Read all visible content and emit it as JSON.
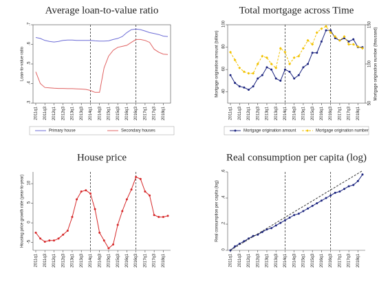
{
  "chart_data": [
    {
      "type": "line",
      "title": "Average loan-to-value ratio",
      "ylabel": "Loan-to-value ratio",
      "box": true,
      "categories": [
        "2011q1",
        null,
        "2011q3",
        null,
        "2012q1",
        null,
        "2012q3",
        null,
        "2013q1",
        null,
        "2013q3",
        null,
        "2014q1",
        null,
        "2014q3",
        null,
        "2015q1",
        null,
        "2015q3",
        null,
        "2016q1",
        null,
        "2016q3",
        null,
        "2017q1",
        null,
        "2017q3",
        null,
        "2018q1",
        null
      ],
      "vlines": [
        "2014q1",
        "2016q3"
      ],
      "ylim": [
        0.3,
        0.7
      ],
      "yticks": [
        {
          "value": 0.3,
          "label": ".3"
        },
        {
          "value": 0.4,
          "label": ".4"
        },
        {
          "value": 0.5,
          "label": ".5"
        },
        {
          "value": 0.6,
          "label": ".6"
        },
        {
          "value": 0.7,
          "label": ".7"
        }
      ],
      "series": [
        {
          "name": "Primary house",
          "color": "#6b6bd6",
          "values": [
            0.635,
            0.63,
            0.62,
            0.615,
            0.612,
            0.615,
            0.62,
            0.622,
            0.622,
            0.62,
            0.62,
            0.62,
            0.62,
            0.618,
            0.617,
            0.617,
            0.618,
            0.625,
            0.63,
            0.64,
            0.66,
            0.675,
            0.678,
            0.675,
            0.668,
            0.66,
            0.655,
            0.65,
            0.642,
            0.64
          ]
        },
        {
          "name": "Secondary houses",
          "color": "#e06060",
          "values": [
            0.46,
            0.4,
            0.38,
            0.378,
            0.376,
            0.375,
            0.375,
            0.374,
            0.374,
            0.373,
            0.372,
            0.37,
            0.365,
            0.355,
            0.355,
            0.48,
            0.54,
            0.57,
            0.585,
            0.59,
            0.595,
            0.61,
            0.625,
            0.625,
            0.62,
            0.61,
            0.575,
            0.56,
            0.55,
            0.548
          ]
        }
      ]
    },
    {
      "type": "line",
      "title": "Total mortgage across Time",
      "ylabel": "Mortgage origination amount (billion)",
      "y2label": "Mortgage origination number (thousand)",
      "box": true,
      "categories": [
        "2011q1",
        null,
        "2011q3",
        null,
        "2012q1",
        null,
        "2012q3",
        null,
        "2013q1",
        null,
        "2013q3",
        null,
        "2014q1",
        null,
        "2014q3",
        null,
        "2015q1",
        null,
        "2015q3",
        null,
        "2016q1",
        null,
        "2016q3",
        null,
        "2017q1",
        null,
        "2017q3",
        null,
        "2018q1",
        null
      ],
      "vlines": [
        "2014q1",
        "2016q3"
      ],
      "ylim": [
        30,
        100
      ],
      "yticks": [
        40,
        60,
        80,
        100
      ],
      "y2lim": [
        50,
        150
      ],
      "y2ticks": [
        50,
        100,
        150
      ],
      "series": [
        {
          "name": "Mortgage origination amount",
          "color": "#1a237e",
          "markers": true,
          "values": [
            55,
            48,
            45,
            44,
            42,
            45,
            52,
            55,
            62,
            60,
            52,
            50,
            60,
            58,
            52,
            55,
            62,
            65,
            75,
            75,
            85,
            95,
            95,
            88,
            86,
            88,
            85,
            87,
            80,
            80
          ]
        },
        {
          "name": "Mortgage origination number",
          "color": "#f2c200",
          "markers": true,
          "dashed": true,
          "axis": "y2",
          "values": [
            115,
            105,
            95,
            90,
            88,
            88,
            100,
            110,
            108,
            100,
            95,
            120,
            115,
            100,
            108,
            110,
            120,
            130,
            125,
            140,
            145,
            148,
            140,
            135,
            130,
            135,
            125,
            125,
            122,
            120
          ]
        }
      ]
    },
    {
      "type": "line",
      "title": "House price",
      "ylabel": "Housing price growth rate (year-to-year)",
      "categories": [
        "2011q1",
        null,
        "2011q3",
        null,
        "2012q1",
        null,
        "2012q3",
        null,
        "2013q1",
        null,
        "2013q3",
        null,
        "2014q1",
        null,
        "2014q3",
        null,
        "2015q1",
        null,
        "2015q3",
        null,
        "2016q1",
        null,
        "2016q3",
        null,
        "2017q1",
        null,
        "2017q3",
        null,
        "2018q1",
        null
      ],
      "vlines": [
        "2014q1",
        "2016q3"
      ],
      "ylim": [
        -7,
        13
      ],
      "yticks": [
        -5,
        0,
        5,
        10
      ],
      "series": [
        {
          "color": "#d62728",
          "markers": true,
          "values": [
            -2.5,
            -4,
            -4.8,
            -4.5,
            -4.5,
            -4,
            -3,
            -2,
            1.5,
            6,
            8,
            8.3,
            7.5,
            3.5,
            -2.5,
            -4.5,
            -6.5,
            -5.5,
            -0.5,
            3,
            6,
            8.5,
            11.7,
            11.2,
            8,
            7,
            2,
            1.5,
            1.5,
            1.8
          ]
        }
      ]
    },
    {
      "type": "line",
      "title": "Real consumption per capita (log)",
      "ylabel": "Real consumption per capita (log)",
      "categories": [
        "2011q1",
        null,
        "2011q3",
        null,
        "2012q1",
        null,
        "2012q3",
        null,
        "2013q1",
        null,
        "2013q3",
        null,
        "2014q1",
        null,
        "2014q3",
        null,
        "2015q1",
        null,
        "2015q3",
        null,
        "2016q1",
        null,
        "2016q3",
        null,
        "2017q1",
        null,
        "2017q3",
        null,
        "2018q1",
        null
      ],
      "vlines": [
        "2014q1",
        "2016q3"
      ],
      "ylim": [
        0,
        0.6
      ],
      "yticks": [
        0,
        {
          "value": 0.2,
          "label": ".2"
        },
        {
          "value": 0.4,
          "label": ".4"
        },
        {
          "value": 0.6,
          "label": ".6"
        }
      ],
      "series": [
        {
          "color": "#1a237e",
          "markers": true,
          "values": [
            0,
            0.03,
            0.05,
            0.07,
            0.09,
            0.11,
            0.12,
            0.14,
            0.16,
            0.17,
            0.19,
            0.21,
            0.23,
            0.25,
            0.27,
            0.28,
            0.3,
            0.32,
            0.34,
            0.36,
            0.38,
            0.4,
            0.42,
            0.44,
            0.45,
            0.47,
            0.49,
            0.5,
            0.53,
            0.58
          ]
        },
        {
          "color": "#333333",
          "dashed": true,
          "values": [
            0,
            0.021,
            0.042,
            0.063,
            0.084,
            0.105,
            0.126,
            0.147,
            0.168,
            0.189,
            0.21,
            0.231,
            0.252,
            0.273,
            0.294,
            0.315,
            0.336,
            0.357,
            0.378,
            0.399,
            0.42,
            0.441,
            0.462,
            0.483,
            0.504,
            0.525,
            0.546,
            0.567,
            0.588,
            0.609
          ]
        }
      ]
    }
  ]
}
